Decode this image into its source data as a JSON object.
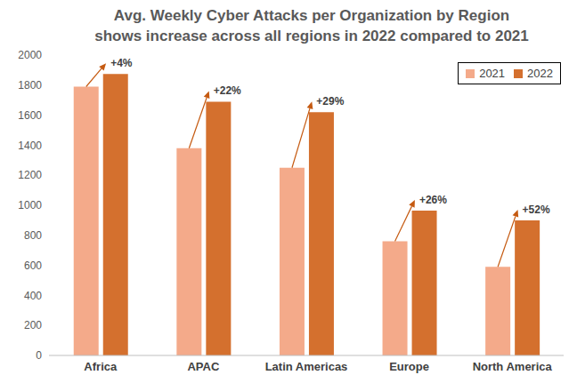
{
  "chart_data": {
    "type": "bar",
    "title": "Avg. Weekly Cyber Attacks per Organization by Region",
    "subtitle": "shows increase across all regions in 2022 compared to 2021",
    "categories": [
      "Africa",
      "APAC",
      "Latin Americas",
      "Europe",
      "North America"
    ],
    "series": [
      {
        "name": "2021",
        "color": "#F4AA8A",
        "values": [
          1790,
          1380,
          1250,
          760,
          590
        ]
      },
      {
        "name": "2022",
        "color": "#D4702E",
        "values": [
          1875,
          1690,
          1620,
          965,
          900
        ]
      }
    ],
    "annotations": [
      "+4%",
      "+22%",
      "+29%",
      "+26%",
      "+52%"
    ],
    "ylim": [
      0,
      2000
    ],
    "yticks": [
      0,
      200,
      400,
      600,
      800,
      1000,
      1200,
      1400,
      1600,
      1800,
      2000
    ],
    "grid": false,
    "legend": "upper right"
  }
}
